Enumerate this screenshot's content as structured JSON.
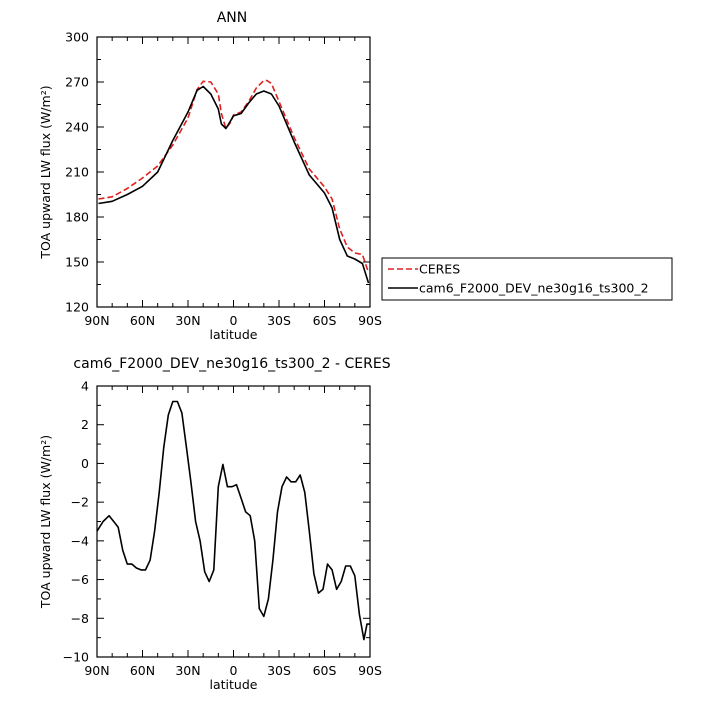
{
  "chart_data": [
    {
      "type": "line",
      "title": "ANN",
      "xlabel": "latitude",
      "ylabel": "TOA upward LW flux (W/m²)",
      "xlim": [
        90,
        -90
      ],
      "ylim": [
        120,
        300
      ],
      "x_ticks": [
        90,
        60,
        30,
        0,
        -30,
        -60,
        -90
      ],
      "x_tick_labels": [
        "90N",
        "60N",
        "30N",
        "0",
        "30S",
        "60S",
        "90S"
      ],
      "y_ticks": [
        120,
        150,
        180,
        210,
        240,
        270,
        300
      ],
      "y_tick_labels": [
        "120",
        "150",
        "180",
        "210",
        "240",
        "270",
        "300"
      ],
      "legend_position": "right",
      "series": [
        {
          "name": "CERES",
          "color": "#e02020",
          "style": "dashed",
          "x": [
            89,
            80,
            70,
            60,
            50,
            40,
            30,
            24,
            20,
            15,
            10,
            8,
            5,
            2,
            0,
            -5,
            -10,
            -15,
            -20,
            -22,
            -25,
            -30,
            -40,
            -50,
            -60,
            -65,
            -70,
            -75,
            -80,
            -85,
            -89
          ],
          "y": [
            192,
            193.5,
            199,
            206,
            214,
            228,
            246,
            265,
            270.5,
            270,
            262,
            249,
            239,
            243,
            248,
            250,
            257,
            266,
            271,
            271,
            269,
            257,
            233,
            212,
            200,
            192,
            172,
            160,
            156,
            155,
            143
          ]
        },
        {
          "name": "cam6_F2000_DEV_ne30g16_ts300_2",
          "color": "#000000",
          "style": "solid",
          "x": [
            89,
            80,
            70,
            60,
            50,
            40,
            30,
            24,
            20,
            15,
            10,
            8,
            5,
            2,
            0,
            -5,
            -10,
            -15,
            -20,
            -25,
            -30,
            -40,
            -50,
            -60,
            -65,
            -70,
            -75,
            -80,
            -85,
            -89
          ],
          "y": [
            189,
            190.5,
            195,
            200.5,
            210,
            231,
            250,
            264.5,
            267,
            262,
            252,
            242,
            239,
            244,
            247.5,
            249,
            256,
            262,
            264,
            262,
            254,
            230,
            208,
            196,
            186,
            165,
            154,
            152,
            149,
            136
          ]
        }
      ]
    },
    {
      "type": "line",
      "title": "cam6_F2000_DEV_ne30g16_ts300_2 - CERES",
      "xlabel": "latitude",
      "ylabel": "TOA upward LW flux (W/m²)",
      "xlim": [
        90,
        -90
      ],
      "ylim": [
        -10,
        4
      ],
      "x_ticks": [
        90,
        60,
        30,
        0,
        -30,
        -60,
        -90
      ],
      "x_tick_labels": [
        "90N",
        "60N",
        "30N",
        "0",
        "30S",
        "60S",
        "90S"
      ],
      "y_ticks": [
        -10,
        -8,
        -6,
        -4,
        -2,
        0,
        2,
        4
      ],
      "y_tick_labels": [
        "−10",
        "−8",
        "−6",
        "−4",
        "−2",
        "0",
        "2",
        "4"
      ],
      "series": [
        {
          "color": "#000000",
          "style": "solid",
          "x": [
            90,
            86,
            82,
            79,
            76,
            73,
            70,
            67,
            64,
            61,
            58,
            55,
            52,
            49,
            46,
            43,
            40,
            37,
            34,
            31,
            28,
            25,
            22,
            19,
            16,
            13,
            10,
            7,
            4,
            1,
            -2,
            -5,
            -8,
            -11,
            -14,
            -17,
            -20,
            -23,
            -26,
            -29,
            -32,
            -35,
            -38,
            -41,
            -44,
            -47,
            -50,
            -53,
            -56,
            -59,
            -62,
            -65,
            -68,
            -71,
            -74,
            -77,
            -80,
            -83,
            -86,
            -88,
            -90
          ],
          "y": [
            -3.5,
            -3.0,
            -2.7,
            -3.0,
            -3.3,
            -4.5,
            -5.2,
            -5.2,
            -5.4,
            -5.5,
            -5.5,
            -5.0,
            -3.5,
            -1.5,
            0.8,
            2.5,
            3.2,
            3.2,
            2.6,
            0.8,
            -1.0,
            -3.0,
            -4.0,
            -5.6,
            -6.1,
            -5.5,
            -1.2,
            -0.05,
            -1.2,
            -1.2,
            -1.1,
            -1.8,
            -2.5,
            -2.7,
            -4.0,
            -7.5,
            -7.9,
            -7.0,
            -5.0,
            -2.5,
            -1.2,
            -0.7,
            -0.95,
            -0.95,
            -0.6,
            -1.5,
            -3.5,
            -5.7,
            -6.7,
            -6.5,
            -5.2,
            -5.5,
            -6.5,
            -6.1,
            -5.3,
            -5.3,
            -5.8,
            -7.8,
            -9.1,
            -8.3,
            -8.3
          ]
        }
      ]
    }
  ]
}
